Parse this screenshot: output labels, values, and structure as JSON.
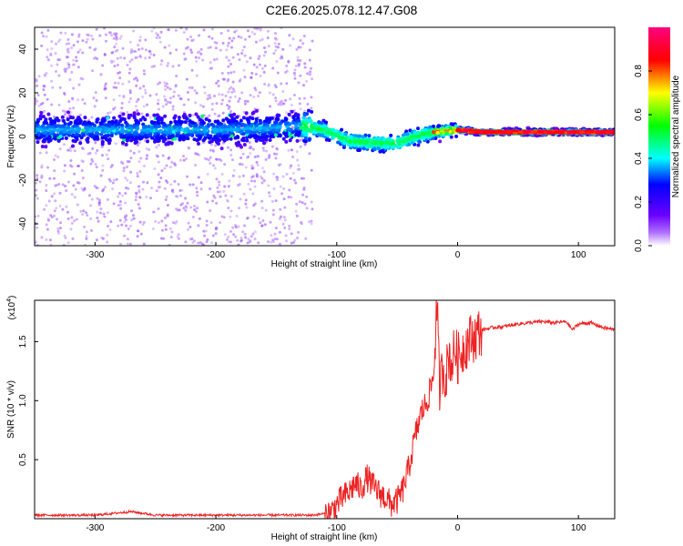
{
  "title": "C2E6.2025.078.12.47.G08",
  "colors": {
    "snr_line": "#ee2222",
    "frame": "#000000"
  },
  "chart_data": [
    {
      "type": "heatmap",
      "xlabel": "Height of straight line (km)",
      "ylabel": "Frequency (Hz)",
      "xlim": [
        -350,
        130
      ],
      "ylim": [
        -50,
        50
      ],
      "x_ticks": [
        -300,
        -200,
        -100,
        0,
        100
      ],
      "y_ticks": [
        -40,
        -20,
        0,
        20,
        40
      ],
      "colorbar": {
        "label": "Normalized spectral amplitude",
        "range": [
          0,
          1
        ],
        "ticks": [
          "0.0",
          "0.2",
          "0.4",
          "0.6",
          "0.8"
        ],
        "colormap": "rainbow (violet-blue-cyan-green-yellow-red-magenta)"
      },
      "ridge_center_hz": {
        "x": [
          -350,
          -300,
          -250,
          -200,
          -150,
          -130,
          -110,
          -90,
          -70,
          -50,
          -35,
          -20,
          0,
          20,
          60,
          100,
          130
        ],
        "y": [
          3,
          3,
          3,
          3,
          4,
          5,
          3,
          -2,
          -3,
          -3,
          0,
          2,
          3,
          2,
          2,
          2,
          2
        ]
      }
    },
    {
      "type": "line",
      "xlabel": "Height of straight line (km)",
      "ylabel": "SNR (10 * v/v)",
      "scale_label_base": "(x10",
      "scale_label_exp": "4",
      "scale_label_end": ")",
      "xlim": [
        -350,
        130
      ],
      "ylim": [
        0,
        1.85
      ],
      "x_ticks": [
        -300,
        -200,
        -100,
        0,
        100
      ],
      "y_ticks": [
        "0.5",
        "1.0",
        "1.5"
      ],
      "series": [
        {
          "x": [
            -350,
            -300,
            -270,
            -250,
            -200,
            -150,
            -120,
            -105,
            -100,
            -95,
            -90,
            -85,
            -80,
            -75,
            -70,
            -65,
            -60,
            -55,
            -50,
            -45,
            -40,
            -35,
            -30,
            -25,
            -20,
            -17,
            -15,
            -12,
            -10,
            -7,
            -5,
            -2,
            0,
            5,
            10,
            15,
            20,
            30,
            40,
            50,
            60,
            70,
            80,
            90,
            95,
            100,
            110,
            120,
            130
          ],
          "y": [
            0.03,
            0.03,
            0.06,
            0.03,
            0.03,
            0.03,
            0.03,
            0.05,
            0.12,
            0.18,
            0.22,
            0.3,
            0.25,
            0.35,
            0.28,
            0.22,
            0.18,
            0.12,
            0.15,
            0.25,
            0.45,
            0.7,
            0.9,
            1.0,
            1.2,
            1.85,
            1.1,
            1.3,
            1.2,
            1.4,
            1.3,
            1.45,
            1.35,
            1.45,
            1.52,
            1.55,
            1.6,
            1.62,
            1.63,
            1.65,
            1.66,
            1.67,
            1.66,
            1.67,
            1.6,
            1.65,
            1.66,
            1.62,
            1.6
          ]
        }
      ]
    }
  ]
}
